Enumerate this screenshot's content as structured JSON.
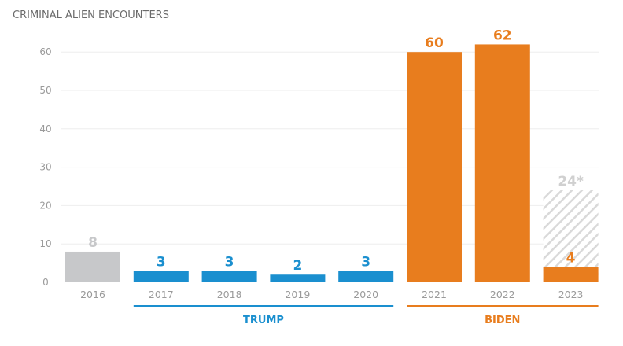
{
  "chart_data": {
    "type": "bar",
    "title": "CRIMINAL ALIEN ENCOUNTERS",
    "xlabel": "",
    "ylabel": "",
    "ylim": [
      0,
      67
    ],
    "yticks": [
      0,
      10,
      20,
      30,
      40,
      50,
      60
    ],
    "grid": true,
    "categories": [
      "2016",
      "2017",
      "2018",
      "2019",
      "2020",
      "2021",
      "2022",
      "2023"
    ],
    "values": [
      8,
      3,
      3,
      2,
      3,
      60,
      62,
      4
    ],
    "value_labels": [
      "8",
      "3",
      "3",
      "2",
      "3",
      "60",
      "62",
      "4"
    ],
    "projected": {
      "category": "2023",
      "value": 24,
      "label": "24*"
    },
    "groups": [
      {
        "name": "TRUMP",
        "from": "2017",
        "to": "2020",
        "color": "#1a8fcf"
      },
      {
        "name": "BIDEN",
        "from": "2021",
        "to": "2023",
        "color": "#e87d1e"
      }
    ],
    "bar_colors": [
      "#c7c8ca",
      "#1a8fcf",
      "#1a8fcf",
      "#1a8fcf",
      "#1a8fcf",
      "#e87d1e",
      "#e87d1e",
      "#e87d1e"
    ],
    "colors": {
      "baseline_gray": "#c7c8ca",
      "trump_blue": "#1a8fcf",
      "biden_orange": "#e87d1e",
      "projection_hatch": "#d9d9d9",
      "tick_text": "#9a9a9a"
    }
  }
}
